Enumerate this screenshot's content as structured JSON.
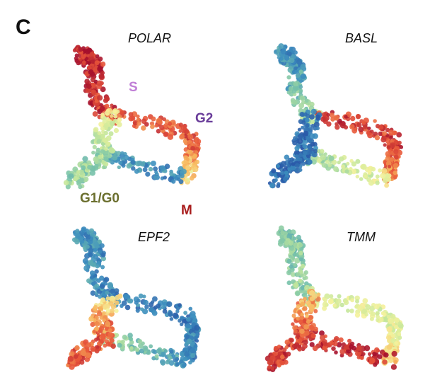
{
  "figure": {
    "panel_letter": "C"
  },
  "chart_data": {
    "type": "scatter",
    "description_of_encoding": "",
    "colormap": [
      "#2a5aa8",
      "#3d8fbf",
      "#79c3a9",
      "#c7e89b",
      "#f5f29c",
      "#f7b45c",
      "#e8553a",
      "#a5102c"
    ],
    "panels": [
      {
        "title": "POLAR",
        "expression": {
          "S": 0.95,
          "G2": 0.85,
          "M": 0.1,
          "G1": 0.35
        },
        "phase_labels": [
          {
            "text": "S",
            "color": "#c07ed6"
          },
          {
            "text": "G2",
            "color": "#6a3d9a"
          },
          {
            "text": "G1/G0",
            "color": "#6b6f2e"
          },
          {
            "text": "M",
            "color": "#a81c1c"
          }
        ]
      },
      {
        "title": "BASL",
        "expression": {
          "S": 0.15,
          "G2": 0.9,
          "M": 0.55,
          "G1": 0.05
        },
        "phase_labels": []
      },
      {
        "title": "EPF2",
        "expression": {
          "S": 0.15,
          "G2": 0.1,
          "M": 0.15,
          "G1": 0.85
        },
        "phase_labels": []
      },
      {
        "title": "TMM",
        "expression": {
          "S": 0.3,
          "G2": 0.5,
          "M": 0.95,
          "G1": 0.9
        },
        "phase_labels": []
      }
    ]
  }
}
